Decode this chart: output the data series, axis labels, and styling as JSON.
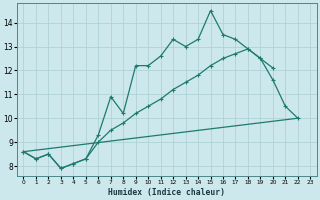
{
  "xlabel": "Humidex (Indice chaleur)",
  "bg_color": "#cce8ec",
  "line_color": "#1e7a6e",
  "grid_color": "#aacfd4",
  "xlim": [
    -0.5,
    23.5
  ],
  "ylim": [
    7.6,
    14.8
  ],
  "yticks": [
    8,
    9,
    10,
    11,
    12,
    13,
    14
  ],
  "xticks": [
    0,
    1,
    2,
    3,
    4,
    5,
    6,
    7,
    8,
    9,
    10,
    11,
    12,
    13,
    14,
    15,
    16,
    17,
    18,
    19,
    20,
    21,
    22,
    23
  ],
  "line1_x": [
    0,
    1,
    2,
    3,
    4,
    5,
    6,
    7,
    8,
    9,
    10,
    11,
    12,
    13,
    14,
    15,
    16,
    17,
    18,
    19,
    20,
    21,
    22
  ],
  "line1_y": [
    8.6,
    8.3,
    8.5,
    7.9,
    8.1,
    8.3,
    9.3,
    10.9,
    10.2,
    12.2,
    12.2,
    12.6,
    13.3,
    13.0,
    13.3,
    14.5,
    13.5,
    13.3,
    12.9,
    12.5,
    11.6,
    10.5,
    10.0
  ],
  "line2_x": [
    0,
    1,
    2,
    3,
    4,
    5,
    6,
    7,
    8,
    9,
    10,
    11,
    12,
    13,
    14,
    15,
    16,
    17,
    18,
    19,
    20
  ],
  "line2_y": [
    8.6,
    8.3,
    8.5,
    7.9,
    8.1,
    8.3,
    9.0,
    9.5,
    9.8,
    10.2,
    10.5,
    10.8,
    11.2,
    11.5,
    11.8,
    12.2,
    12.5,
    12.7,
    12.9,
    12.5,
    12.1
  ],
  "line3_x": [
    0,
    22
  ],
  "line3_y": [
    8.6,
    10.0
  ]
}
